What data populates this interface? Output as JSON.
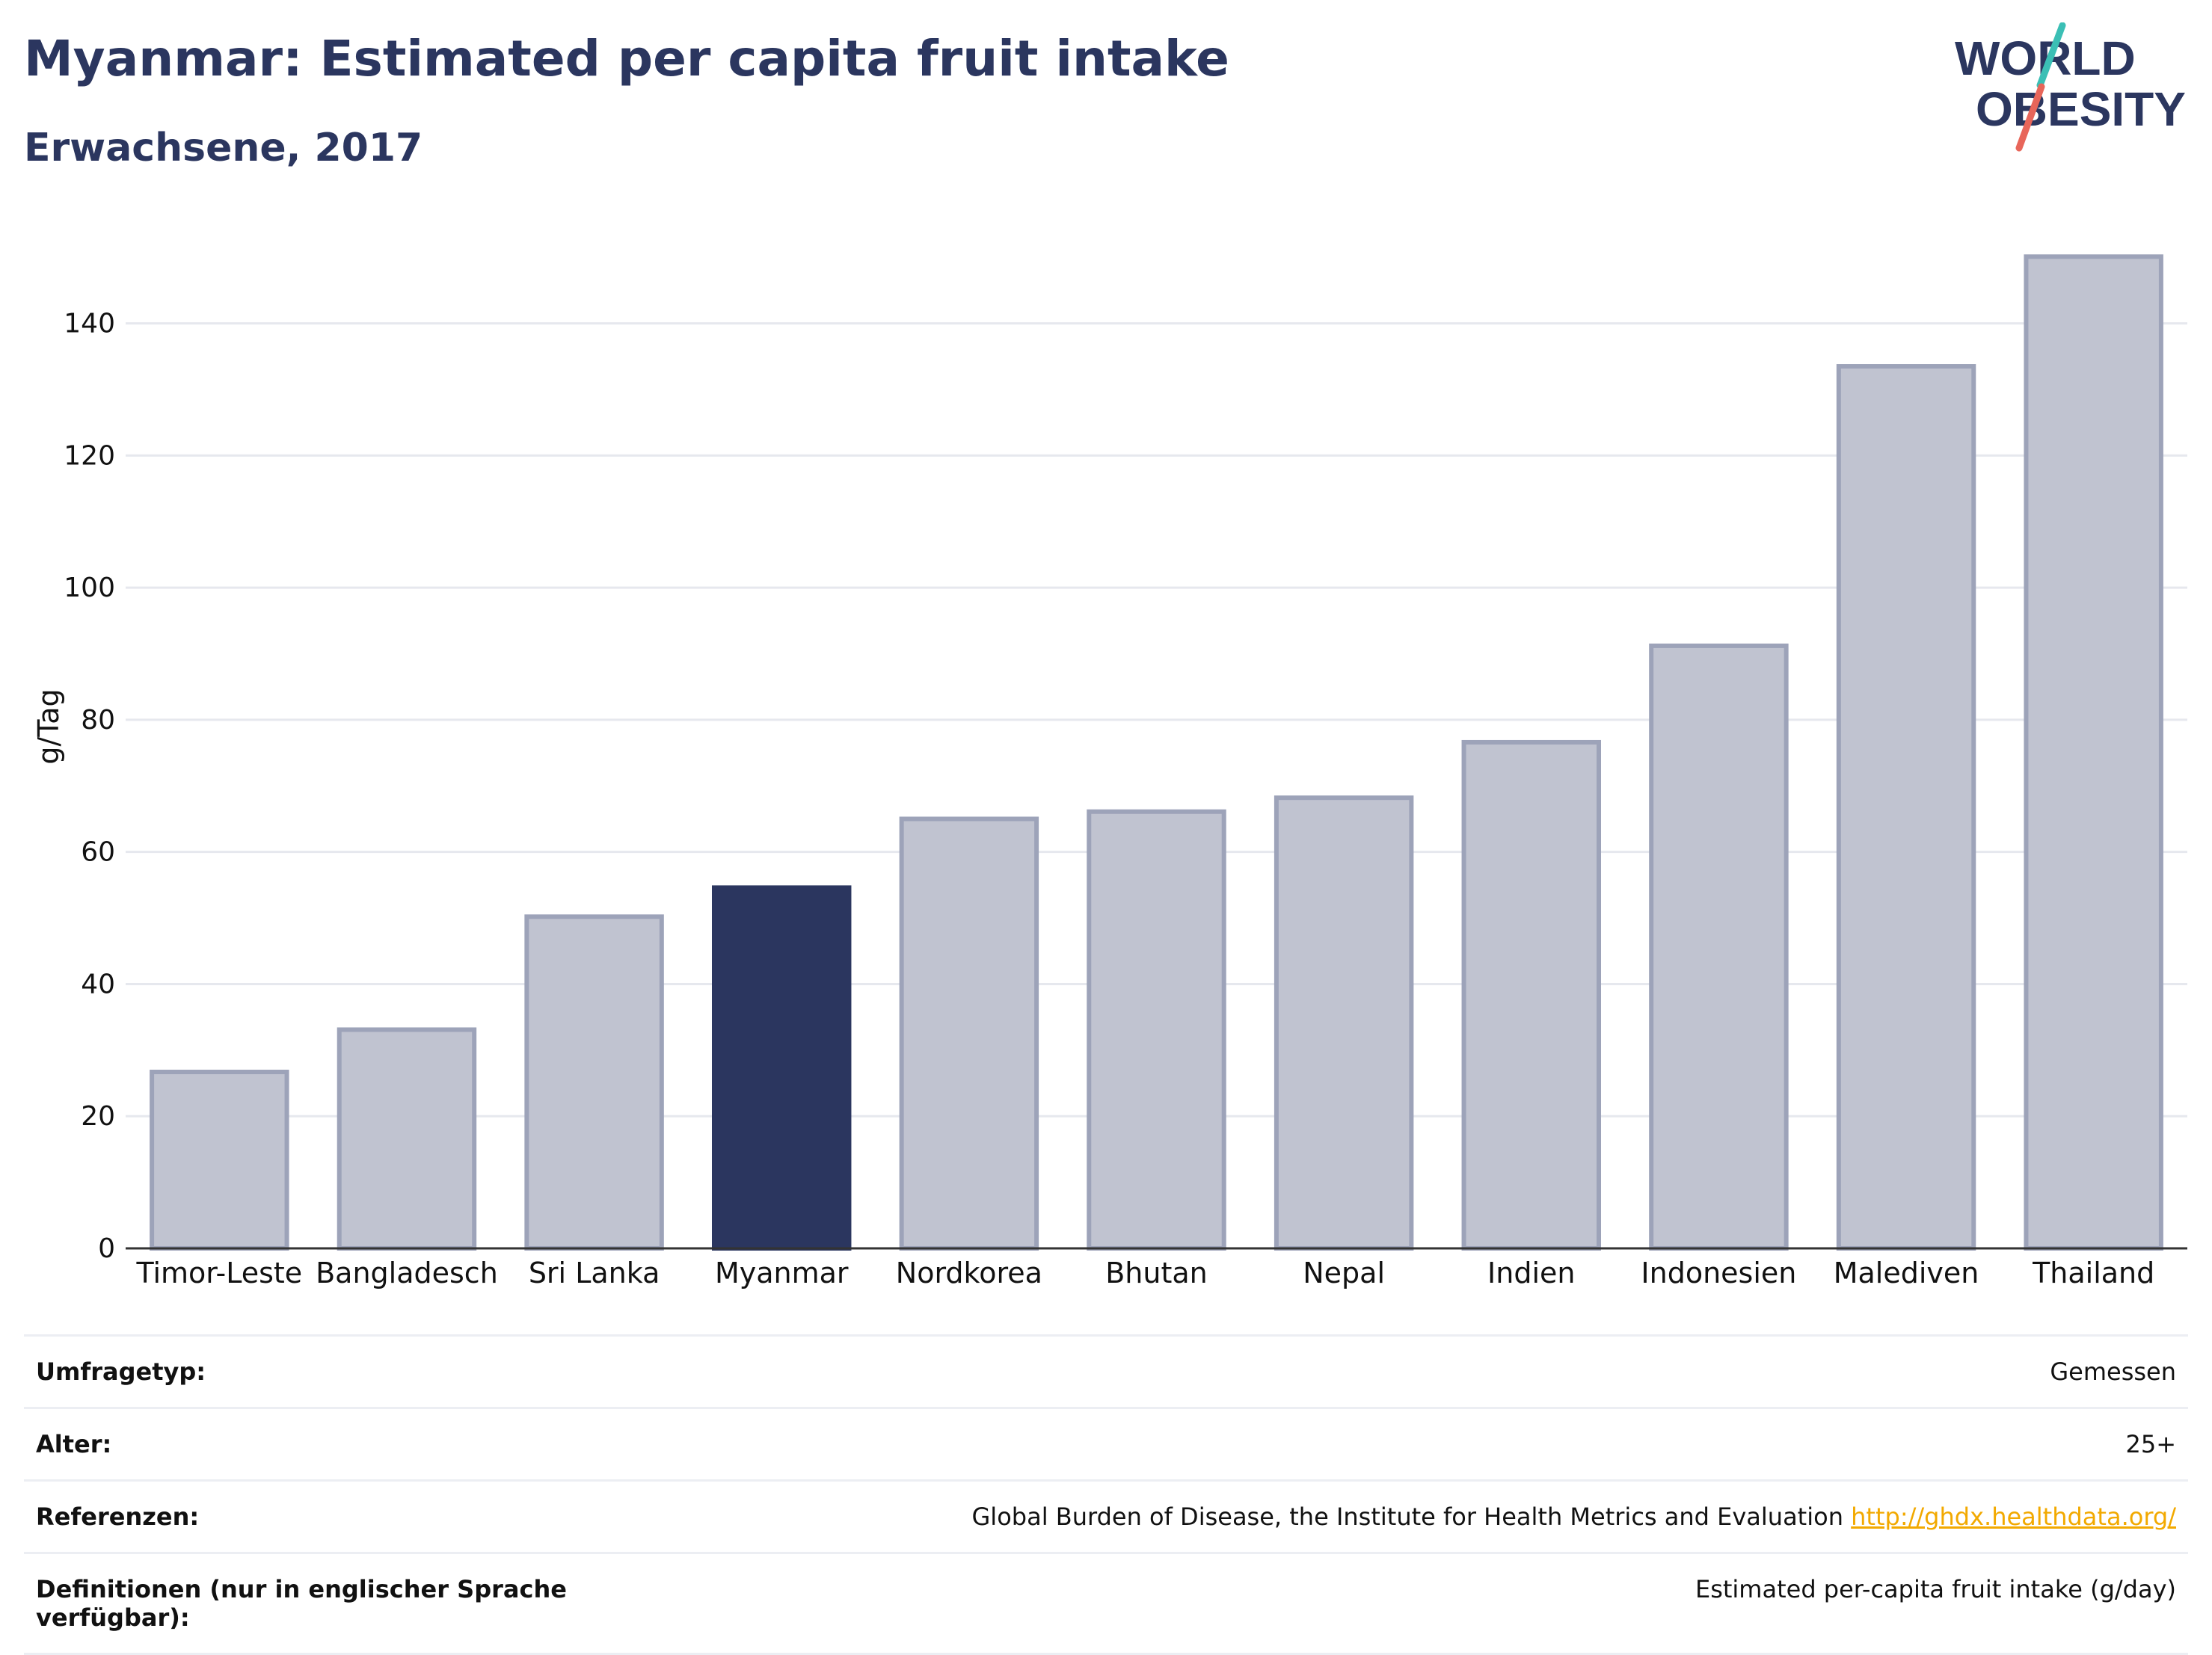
{
  "header": {
    "title": "Myanmar: Estimated per capita fruit intake",
    "subtitle": "Erwachsene, 2017"
  },
  "logo": {
    "line1": "WORLD",
    "line2": "OBESITY",
    "colors": {
      "text": "#2b365f",
      "slash_top": "#3bbfb5",
      "slash_bottom": "#e8665a"
    }
  },
  "chart_data": {
    "type": "bar",
    "title": "Myanmar: Estimated per capita fruit intake",
    "subtitle": "Erwachsene, 2017",
    "ylabel": "g/Tag",
    "xlabel": "",
    "categories": [
      "Timor-Leste",
      "Bangladesch",
      "Sri Lanka",
      "Myanmar",
      "Nordkorea",
      "Bhutan",
      "Nepal",
      "Indien",
      "Indonesien",
      "Malediven",
      "Thailand"
    ],
    "values": [
      26.7,
      33.1,
      50.2,
      54.6,
      65.0,
      66.1,
      68.2,
      76.6,
      91.2,
      133.5,
      150.1
    ],
    "highlight": "Myanmar",
    "ylim": [
      0,
      155
    ],
    "yticks": [
      0,
      20,
      40,
      60,
      80,
      100,
      120,
      140
    ],
    "grid": true,
    "colors": {
      "bar": "#c0c3d0",
      "bar_edge": "#9da3b9",
      "highlight": "#2b365f",
      "grid": "#e6e8ee",
      "axis": "#333333"
    }
  },
  "info": {
    "rows": [
      {
        "key": "Umfragetyp:",
        "value": "Gemessen"
      },
      {
        "key": "Alter:",
        "value": "25+"
      },
      {
        "key": "Referenzen:",
        "value": "Global Burden of Disease, the Institute for Health Metrics and Evaluation",
        "link": "http://ghdx.healthdata.org/"
      },
      {
        "key": "Definitionen (nur in englischer Sprache verfügbar):",
        "value": "Estimated per-capita fruit intake (g/day)"
      }
    ]
  }
}
